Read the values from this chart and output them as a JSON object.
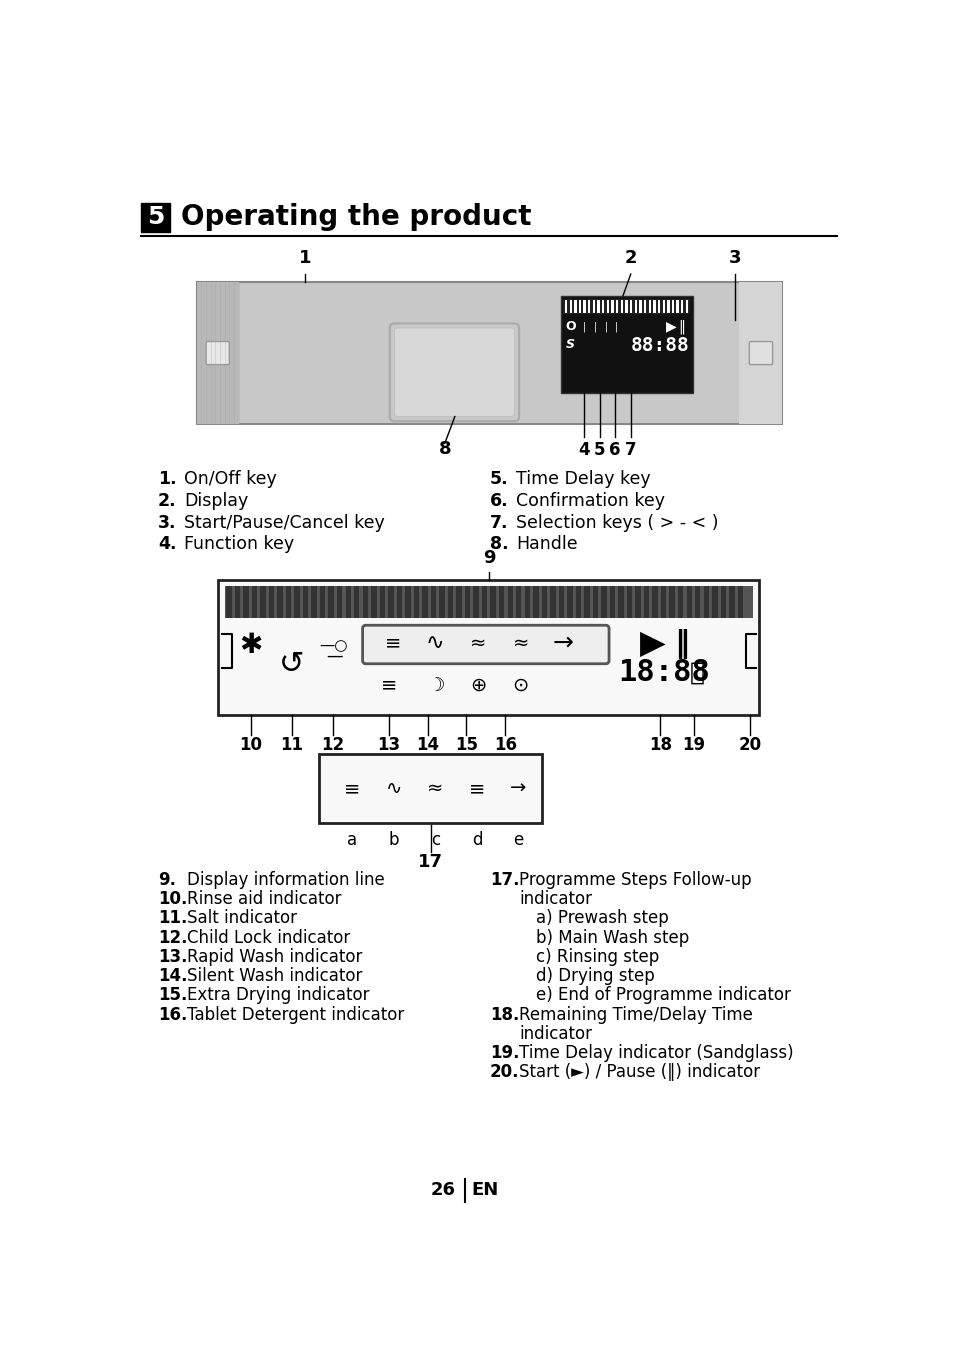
{
  "title_number": "5",
  "title_text": "Operating the product",
  "bg_color": "#ffffff",
  "left_items": [
    [
      "1.",
      "On/Off key"
    ],
    [
      "2.",
      "Display"
    ],
    [
      "3.",
      "Start/Pause/Cancel key"
    ],
    [
      "4.",
      "Function key"
    ]
  ],
  "right_items": [
    [
      "5.",
      "Time Delay key"
    ],
    [
      "6.",
      "Confirmation key"
    ],
    [
      "7.",
      "Selection keys ( > - < )"
    ],
    [
      "8.",
      "Handle"
    ]
  ],
  "bottom_left_items": [
    [
      "9.",
      "Display information line"
    ],
    [
      "10.",
      "Rinse aid indicator"
    ],
    [
      "11.",
      "Salt indicator"
    ],
    [
      "12.",
      "Child Lock indicator"
    ],
    [
      "13.",
      "Rapid Wash indicator"
    ],
    [
      "14.",
      "Silent Wash indicator"
    ],
    [
      "15.",
      "Extra Drying indicator"
    ],
    [
      "16.",
      "Tablet Detergent indicator"
    ]
  ],
  "bottom_right_items": [
    [
      "17.",
      "Programme Steps Follow-up"
    ],
    [
      "",
      "indicator"
    ],
    [
      "",
      "a) Prewash step"
    ],
    [
      "",
      "b) Main Wash step"
    ],
    [
      "",
      "c) Rinsing step"
    ],
    [
      "",
      "d) Drying step"
    ],
    [
      "",
      "e) End of Programme indicator"
    ],
    [
      "18.",
      "Remaining Time/Delay Time"
    ],
    [
      "",
      "indicator"
    ],
    [
      "19.",
      "Time Delay indicator (Sandglass)"
    ],
    [
      "20.",
      "Start (►) / Pause (‖) indicator"
    ]
  ]
}
